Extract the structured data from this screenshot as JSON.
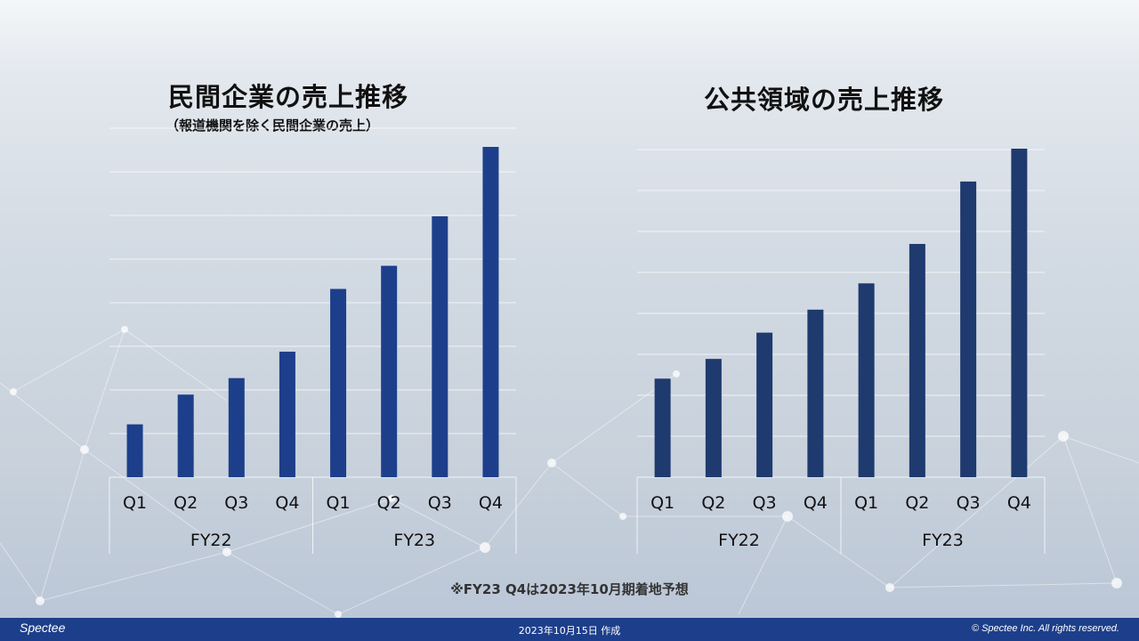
{
  "charts": {
    "left": {
      "title": "民間企業の売上推移",
      "subtitle": "（報道機関を除く民間企業の売上）"
    },
    "right": {
      "title": "公共領域の売上推移"
    }
  },
  "chart_data": [
    {
      "type": "bar",
      "title": "民間企業の売上推移",
      "subtitle": "（報道機関を除く民間企業の売上）",
      "categories": [
        "Q1",
        "Q2",
        "Q3",
        "Q4",
        "Q1",
        "Q2",
        "Q3",
        "Q4"
      ],
      "groups": [
        {
          "label": "FY22",
          "quarters": [
            "Q1",
            "Q2",
            "Q3",
            "Q4"
          ]
        },
        {
          "label": "FY23",
          "quarters": [
            "Q1",
            "Q2",
            "Q3",
            "Q4"
          ]
        }
      ],
      "values": [
        16,
        25,
        30,
        38,
        57,
        64,
        79,
        100
      ],
      "ylim": [
        0,
        100
      ],
      "y_axis_labels": false,
      "grid": true,
      "color": "#1d3f8b"
    },
    {
      "type": "bar",
      "title": "公共領域の売上推移",
      "categories": [
        "Q1",
        "Q2",
        "Q3",
        "Q4",
        "Q1",
        "Q2",
        "Q3",
        "Q4"
      ],
      "groups": [
        {
          "label": "FY22",
          "quarters": [
            "Q1",
            "Q2",
            "Q3",
            "Q4"
          ]
        },
        {
          "label": "FY23",
          "quarters": [
            "Q1",
            "Q2",
            "Q3",
            "Q4"
          ]
        }
      ],
      "values": [
        30,
        36,
        44,
        51,
        59,
        71,
        90,
        100
      ],
      "ylim": [
        0,
        100
      ],
      "y_axis_labels": false,
      "grid": true,
      "color": "#1f3a6e"
    }
  ],
  "note": "※FY23 Q4は2023年10月期着地予想",
  "footer": {
    "logo": "Spectee",
    "date": "2023年10月15日 作成",
    "copyright": "© Spectee Inc. All rights reserved."
  }
}
